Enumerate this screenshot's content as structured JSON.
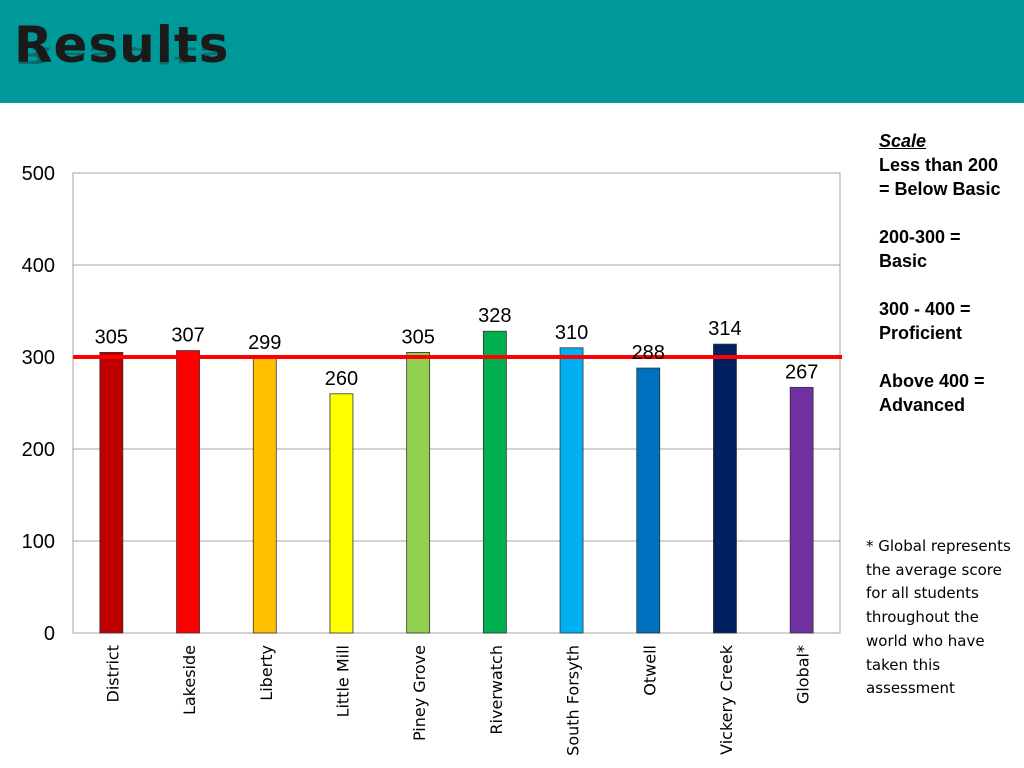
{
  "slide": {
    "title": "Results"
  },
  "scale": {
    "heading": "Scale",
    "lines": [
      [
        "Less than 200",
        "= Below Basic"
      ],
      [
        "200-300 =",
        "Basic"
      ],
      [
        "300 - 400 =",
        "Proficient"
      ],
      [
        "Above 400 =",
        "Advanced"
      ]
    ]
  },
  "note": "* Global represents the average score for all students throughout the world who have taken this assessment",
  "chart_data": {
    "type": "bar",
    "title": "",
    "xlabel": "",
    "ylabel": "",
    "categories": [
      "District",
      "Lakeside",
      "Liberty",
      "Little Mill",
      "Piney Grove",
      "Riverwatch",
      "South Forsyth",
      "Otwell",
      "Vickery Creek",
      "Global*"
    ],
    "values": [
      305,
      307,
      299,
      260,
      305,
      328,
      310,
      288,
      314,
      267
    ],
    "colors": [
      "#c00000",
      "#ff0000",
      "#ffc000",
      "#ffff00",
      "#92d050",
      "#00b050",
      "#00b0f0",
      "#0070c0",
      "#002060",
      "#7030a0"
    ],
    "ylim": [
      0,
      500
    ],
    "yticks": [
      0,
      100,
      200,
      300,
      400,
      500
    ],
    "grid": true,
    "reference_line": {
      "value": 300,
      "color": "#ff0000"
    }
  }
}
